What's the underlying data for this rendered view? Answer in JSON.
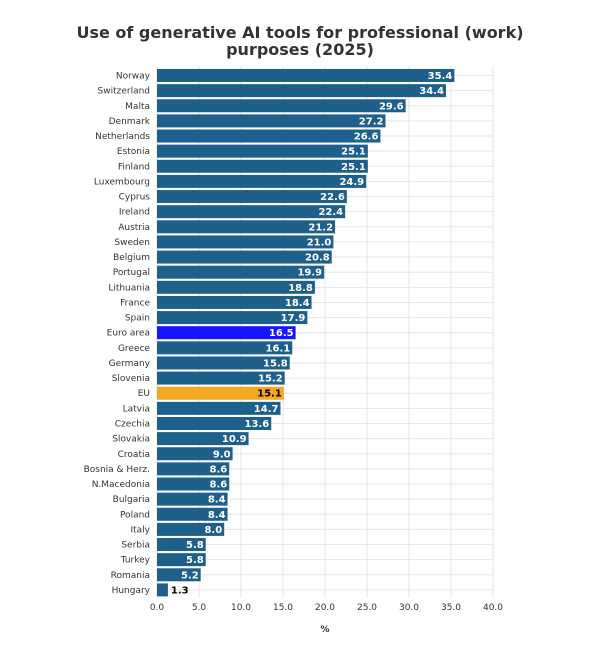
{
  "chart_data": {
    "type": "bar",
    "orientation": "horizontal",
    "title_lines": [
      "Use of generative AI tools for professional (work)",
      "purposes (2025)"
    ],
    "xlabel": "%",
    "ylabel": "",
    "xlim": [
      0,
      40
    ],
    "x_ticks": [
      "0.0",
      "5.0",
      "10.0",
      "15.0",
      "20.0",
      "25.0",
      "30.0",
      "35.0",
      "40.0"
    ],
    "grid": true,
    "legend": "none",
    "categories": [
      "Norway",
      "Switzerland",
      "Malta",
      "Denmark",
      "Netherlands",
      "Estonia",
      "Finland",
      "Luxembourg",
      "Cyprus",
      "Ireland",
      "Austria",
      "Sweden",
      "Belgium",
      "Portugal",
      "Lithuania",
      "France",
      "Spain",
      "Euro area",
      "Greece",
      "Germany",
      "Slovenia",
      "EU",
      "Latvia",
      "Czechia",
      "Slovakia",
      "Croatia",
      "Bosnia & Herz.",
      "N.Macedonia",
      "Bulgaria",
      "Poland",
      "Italy",
      "Serbia",
      "Turkey",
      "Romania",
      "Hungary"
    ],
    "values": [
      35.4,
      34.4,
      29.6,
      27.2,
      26.6,
      25.1,
      25.1,
      24.9,
      22.6,
      22.4,
      21.2,
      21.0,
      20.8,
      19.9,
      18.8,
      18.4,
      17.9,
      16.5,
      16.1,
      15.8,
      15.2,
      15.1,
      14.7,
      13.6,
      10.9,
      9.0,
      8.6,
      8.6,
      8.4,
      8.4,
      8.0,
      5.8,
      5.8,
      5.2,
      1.3
    ],
    "value_labels": [
      "35.4",
      "34.4",
      "29.6",
      "27.2",
      "26.6",
      "25.1",
      "25.1",
      "24.9",
      "22.6",
      "22.4",
      "21.2",
      "21.0",
      "20.8",
      "19.9",
      "18.8",
      "18.4",
      "17.9",
      "16.5",
      "16.1",
      "15.8",
      "15.2",
      "15.1",
      "14.7",
      "13.6",
      "10.9",
      "9.0",
      "8.6",
      "8.6",
      "8.4",
      "8.4",
      "8.0",
      "5.8",
      "5.8",
      "5.2",
      "1.3"
    ],
    "colors": {
      "default": "#1f5f8b",
      "highlight": {
        "Euro area": "#1515ff",
        "EU": "#f5a623"
      },
      "value_label_default": "#ffffff",
      "value_label_highlight": {
        "EU": "#000000"
      },
      "outside_label": "#000000",
      "grid": "#e6e6e6"
    }
  }
}
